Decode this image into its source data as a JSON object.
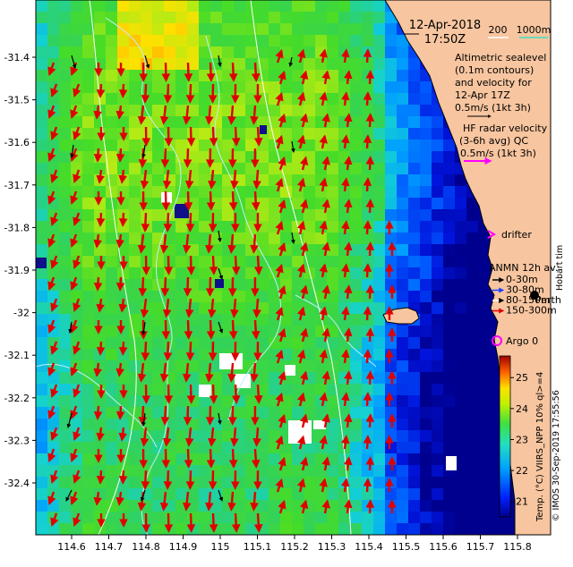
{
  "map": {
    "header": {
      "date": "12-Apr-2018",
      "time": "17:50Z"
    },
    "depth_legend": {
      "label": "200",
      "label2": "1000m"
    },
    "altimetry_text": [
      "Altimetric sealevel",
      "(0.1m contours)",
      "and velocity for",
      "12-Apr 17Z",
      "0.5m/s (1kt 3h)"
    ],
    "hf_radar_text": [
      "HF radar velocity",
      "(3-6h avg) QC",
      "0.5m/s (1kt 3h)"
    ],
    "drifter_label": "drifter",
    "anmn_title": "ANMN 12h av.",
    "anmn_items": [
      {
        "label": "0-30m",
        "color": "#000000"
      },
      {
        "label": "30-80m",
        "color": "#1f3fff"
      },
      {
        "label": "80-150m",
        "color": "#ffffff"
      },
      {
        "label": "150-300m",
        "color": "#ff0000"
      }
    ],
    "city_label": "Perth",
    "hobart_label": "Hobart tim",
    "argo_label": "Argo 0",
    "colorbar": {
      "title": "Temp. (°C) VIIRS_NPP 10% ql>=4",
      "ticks": [
        21,
        22,
        23,
        24,
        25
      ],
      "min": 20.5,
      "max": 25.7
    },
    "credit": "© IMOS 30-Sep-2019 17:55:56",
    "y_ticks": [
      "-31.4",
      "-31.5",
      "-31.6",
      "-31.7",
      "-31.8",
      "-31.9",
      "-32",
      "-32.1",
      "-32.2",
      "-32.3",
      "-32.4"
    ],
    "x_ticks": [
      "114.6",
      "114.7",
      "114.8",
      "114.9",
      "115",
      "115.1",
      "115.2",
      "115.3",
      "115.4",
      "115.5",
      "115.6",
      "115.7",
      "115.8"
    ],
    "colors": {
      "land": "#f7c59f",
      "contour": "#bfefff",
      "arrow": "#e00000",
      "argo": "#ff00ff",
      "drifter": "#ff00ff"
    }
  }
}
